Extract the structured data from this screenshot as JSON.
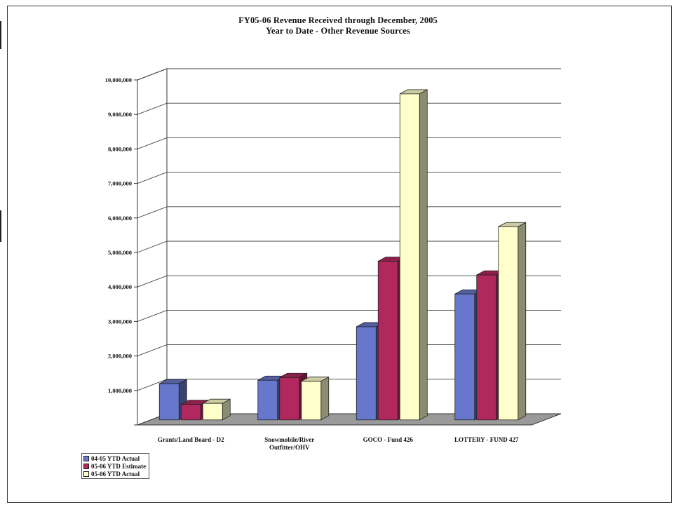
{
  "chart_data": {
    "type": "bar",
    "title": "FY05-06 Revenue Received through December, 2005",
    "subtitle": "Year to Date - Other Revenue Sources",
    "categories": [
      "Grants/Land Board - D2",
      "Snowmobile/River Outfitter/OHV",
      "GOCO - Fund 426",
      "LOTTERY - FUND 427"
    ],
    "category_lines": [
      [
        "Grants/Land Board - D2"
      ],
      [
        "Snowmobile/River",
        "Outfitter/OHV"
      ],
      [
        "GOCO - Fund 426"
      ],
      [
        "LOTTERY - FUND 427"
      ]
    ],
    "series": [
      {
        "name": "04-05 YTD Actual",
        "values": [
          1050000,
          1150000,
          2700000,
          3650000
        ],
        "color": "#6677cc"
      },
      {
        "name": "05-06 YTD Estimate",
        "values": [
          450000,
          1230000,
          4600000,
          4200000
        ],
        "color": "#b0285e"
      },
      {
        "name": "05-06 YTD Actual",
        "values": [
          480000,
          1120000,
          9450000,
          5600000
        ],
        "color": "#ffffcc"
      }
    ],
    "ylim": [
      0,
      10000000
    ],
    "yticks": [
      "",
      "1,000,000",
      "2,000,000",
      "3,000,000",
      "4,000,000",
      "5,000,000",
      "6,000,000",
      "7,000,000",
      "8,000,000",
      "9,000,000",
      "10,000,000"
    ],
    "grid": true,
    "legend_position": "bottom-left",
    "style": "3d-clustered-column"
  }
}
